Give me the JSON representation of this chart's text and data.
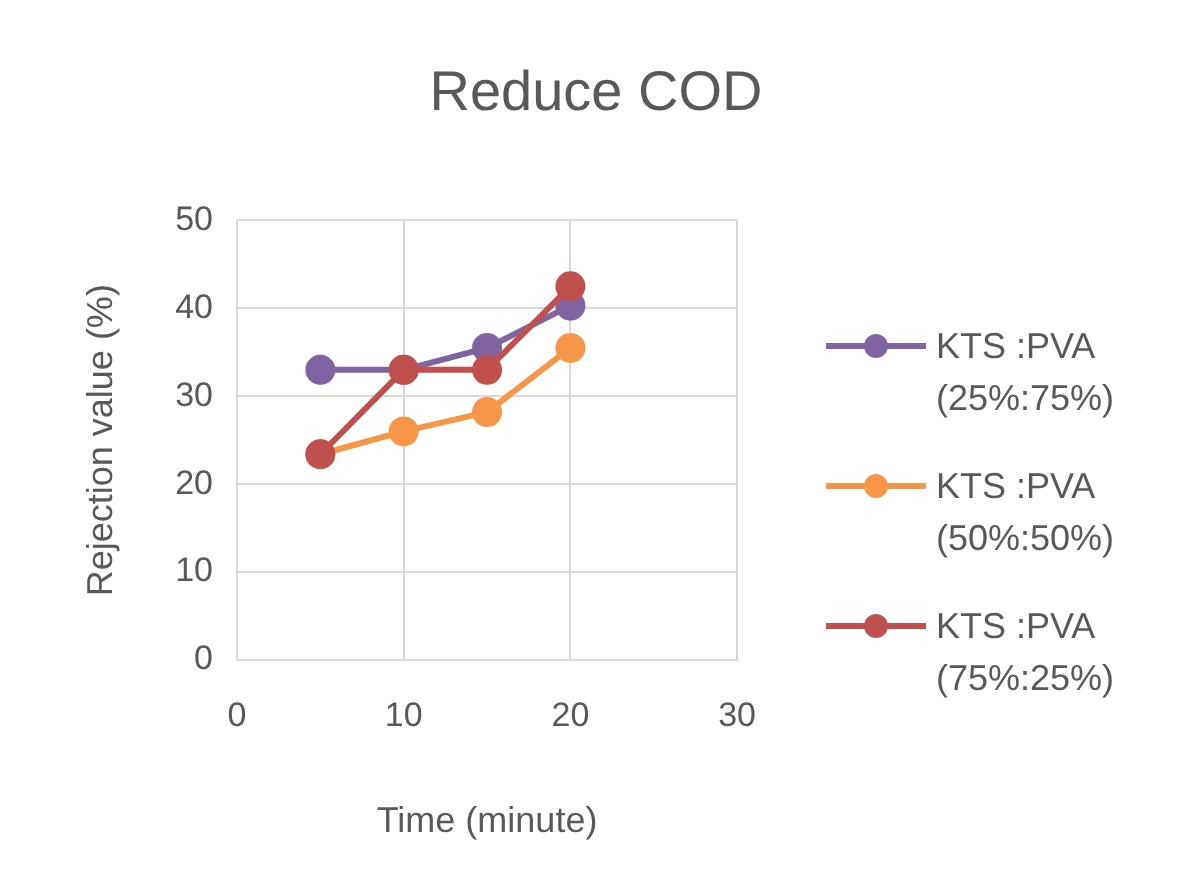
{
  "chart_data": {
    "type": "line",
    "title": "Reduce COD",
    "xlabel": "Time (minute)",
    "ylabel": "Rejection value (%)",
    "xlim": [
      0,
      30
    ],
    "xticks": [
      0,
      10,
      20,
      30
    ],
    "ylim": [
      0,
      50
    ],
    "yticks": [
      0,
      10,
      20,
      30,
      40,
      50
    ],
    "grid": true,
    "legend": "right",
    "marker": "circle",
    "line_style": "solid",
    "series": [
      {
        "name": "KTS :PVA (25%:75%)",
        "color": "#8064a2",
        "x": [
          5,
          10,
          15,
          20
        ],
        "values": [
          33,
          33,
          35.5,
          40.3
        ]
      },
      {
        "name": "KTS :PVA (50%:50%)",
        "color": "#f79646",
        "x": [
          5,
          10,
          15,
          20
        ],
        "values": [
          23.4,
          26,
          28.2,
          35.5
        ]
      },
      {
        "name": "KTS :PVA (75%:25%)",
        "color": "#c0504d",
        "x": [
          5,
          10,
          15,
          20
        ],
        "values": [
          23.4,
          33,
          33,
          42.5
        ]
      }
    ]
  }
}
